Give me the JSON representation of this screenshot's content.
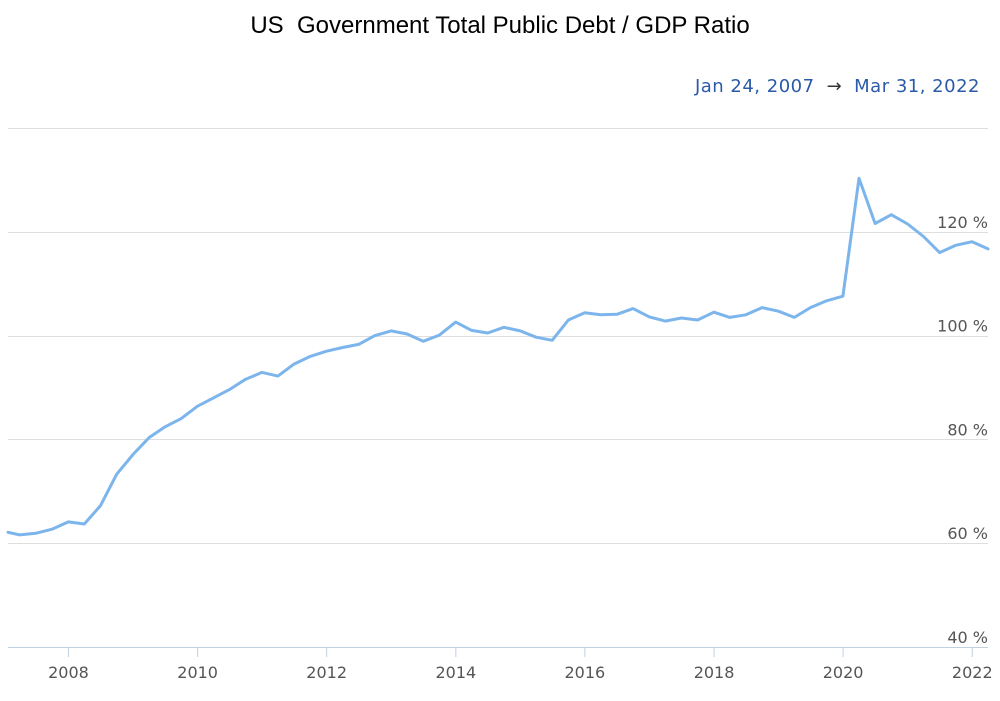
{
  "title": "US  Government Total Public Debt / GDP Ratio",
  "date_range": {
    "start": "Jan 24, 2007",
    "arrow": "→",
    "end": "Mar 31, 2022"
  },
  "colors": {
    "line": "#7cb5ec",
    "grid": "#dedede",
    "axis": "#c0d0e0",
    "range_text": "#2a5aa8"
  },
  "chart_data": {
    "type": "line",
    "title": "US  Government Total Public Debt / GDP Ratio",
    "xlabel": "",
    "ylabel": "",
    "y_unit": "%",
    "ylim": [
      40,
      140
    ],
    "xlim": [
      "2007-01-24",
      "2022-03-31"
    ],
    "y_ticks": [
      40,
      60,
      80,
      100,
      120
    ],
    "y_tick_labels": [
      "40 %",
      "60 %",
      "80 %",
      "100 %",
      "120 %"
    ],
    "x_tick_labels": [
      "2008",
      "2010",
      "2012",
      "2014",
      "2016",
      "2018",
      "2020",
      "2022"
    ],
    "grid": true,
    "series": [
      {
        "points": [
          [
            "2007-01-24",
            62.1
          ],
          [
            "2007-03-31",
            61.6
          ],
          [
            "2007-06-30",
            61.9
          ],
          [
            "2007-09-30",
            62.7
          ],
          [
            "2007-12-31",
            64.1
          ],
          [
            "2008-03-31",
            63.7
          ],
          [
            "2008-06-30",
            67.2
          ],
          [
            "2008-09-30",
            73.3
          ],
          [
            "2008-12-31",
            77.1
          ],
          [
            "2009-03-31",
            80.3
          ],
          [
            "2009-06-30",
            82.4
          ],
          [
            "2009-09-30",
            84.0
          ],
          [
            "2009-12-31",
            86.4
          ],
          [
            "2010-03-31",
            88.0
          ],
          [
            "2010-06-30",
            89.6
          ],
          [
            "2010-09-30",
            91.6
          ],
          [
            "2010-12-31",
            92.9
          ],
          [
            "2011-03-31",
            92.2
          ],
          [
            "2011-06-30",
            94.5
          ],
          [
            "2011-09-30",
            96.0
          ],
          [
            "2011-12-31",
            97.0
          ],
          [
            "2012-03-31",
            97.7
          ],
          [
            "2012-06-30",
            98.3
          ],
          [
            "2012-09-30",
            100.0
          ],
          [
            "2012-12-31",
            100.9
          ],
          [
            "2013-03-31",
            100.3
          ],
          [
            "2013-06-30",
            98.9
          ],
          [
            "2013-09-30",
            100.1
          ],
          [
            "2013-12-31",
            102.6
          ],
          [
            "2014-03-31",
            101.0
          ],
          [
            "2014-06-30",
            100.5
          ],
          [
            "2014-09-30",
            101.6
          ],
          [
            "2014-12-31",
            100.9
          ],
          [
            "2015-03-31",
            99.7
          ],
          [
            "2015-06-30",
            99.1
          ],
          [
            "2015-09-30",
            103.0
          ],
          [
            "2015-12-31",
            104.4
          ],
          [
            "2016-03-31",
            104.0
          ],
          [
            "2016-06-30",
            104.1
          ],
          [
            "2016-09-30",
            105.2
          ],
          [
            "2016-12-31",
            103.6
          ],
          [
            "2017-03-31",
            102.8
          ],
          [
            "2017-06-30",
            103.4
          ],
          [
            "2017-09-30",
            103.0
          ],
          [
            "2017-12-31",
            104.5
          ],
          [
            "2018-03-31",
            103.5
          ],
          [
            "2018-06-30",
            104.0
          ],
          [
            "2018-09-30",
            105.4
          ],
          [
            "2018-12-31",
            104.7
          ],
          [
            "2019-03-31",
            103.5
          ],
          [
            "2019-06-30",
            105.4
          ],
          [
            "2019-09-30",
            106.7
          ],
          [
            "2019-12-31",
            107.6
          ],
          [
            "2020-03-31",
            130.3
          ],
          [
            "2020-06-30",
            121.6
          ],
          [
            "2020-09-30",
            123.3
          ],
          [
            "2020-12-31",
            121.5
          ],
          [
            "2021-03-31",
            119.1
          ],
          [
            "2021-06-30",
            116.0
          ],
          [
            "2021-09-30",
            117.4
          ],
          [
            "2021-12-31",
            118.1
          ],
          [
            "2022-03-31",
            116.7
          ]
        ]
      }
    ]
  }
}
